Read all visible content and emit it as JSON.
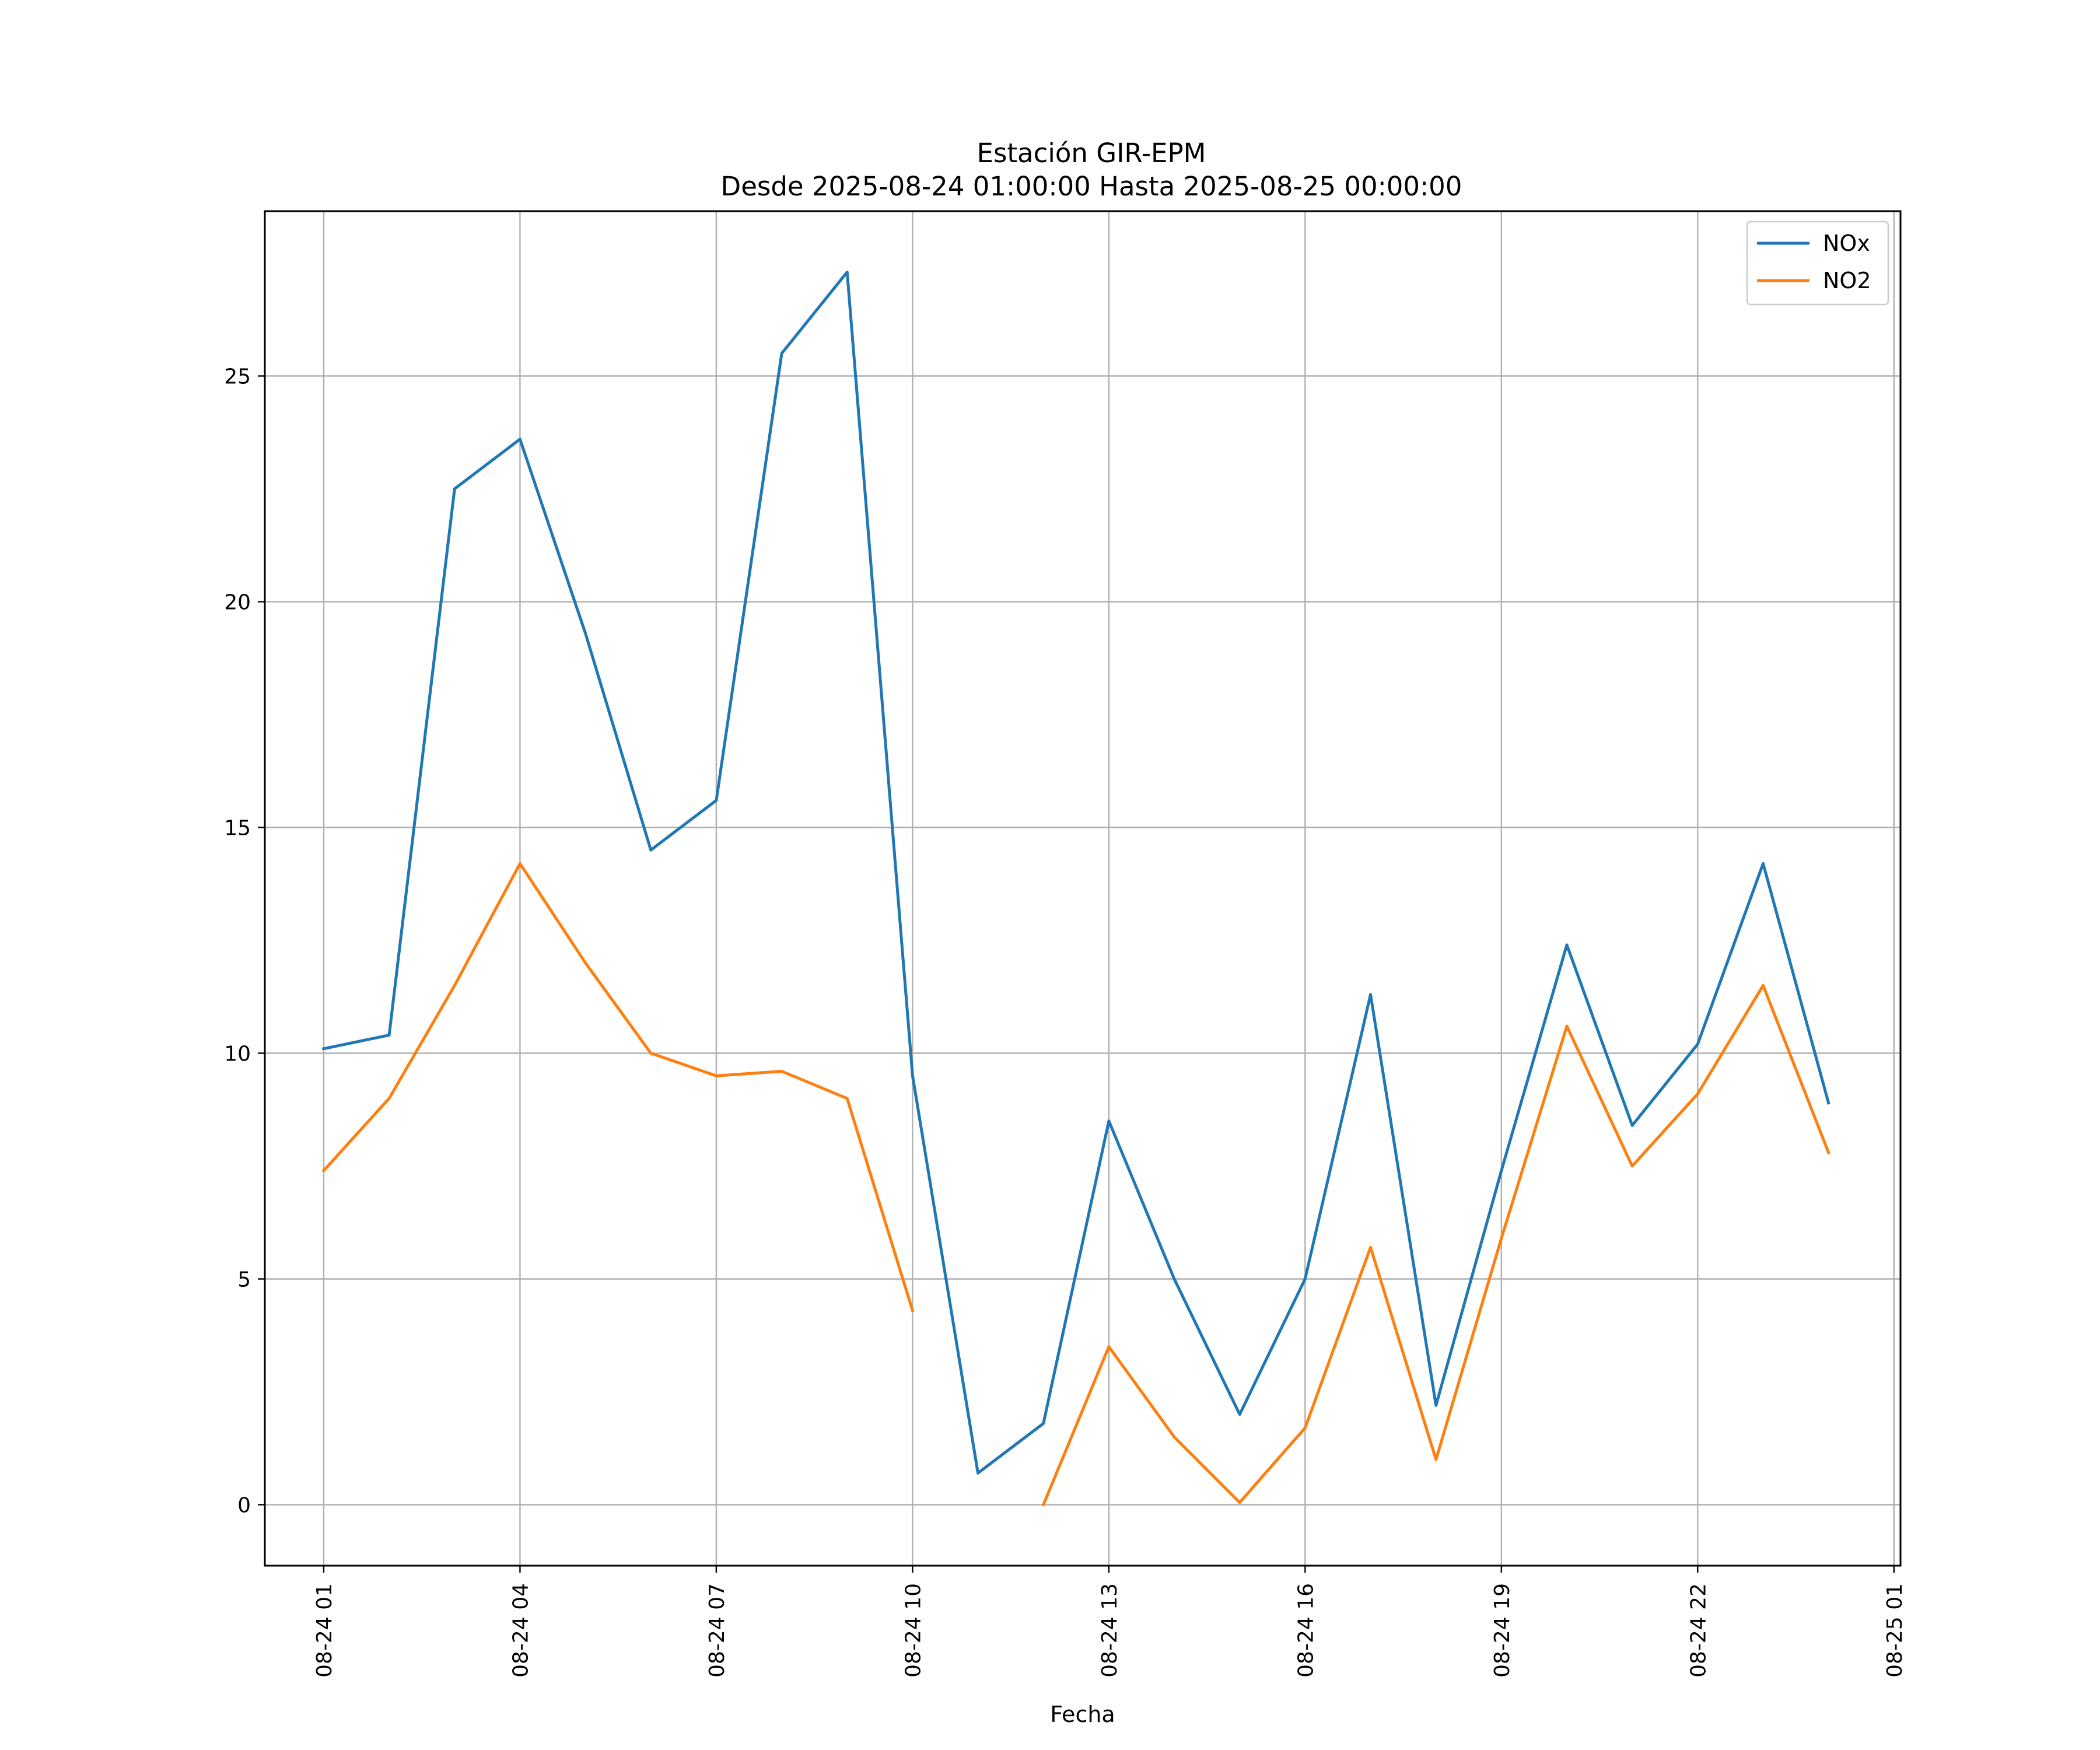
{
  "chart_data": {
    "type": "line",
    "title": "Estación GIR-EPM",
    "subtitle": "Desde 2025-08-24 01:00:00 Hasta 2025-08-25 00:00:00",
    "xlabel": "Fecha",
    "ylabel": "",
    "x": [
      "08-24 01",
      "08-24 02",
      "08-24 03",
      "08-24 04",
      "08-24 05",
      "08-24 06",
      "08-24 07",
      "08-24 08",
      "08-24 09",
      "08-24 10",
      "08-24 11",
      "08-24 12",
      "08-24 13",
      "08-24 14",
      "08-24 15",
      "08-24 16",
      "08-24 17",
      "08-24 18",
      "08-24 19",
      "08-24 20",
      "08-24 21",
      "08-24 22",
      "08-24 23",
      "08-25 00"
    ],
    "xticks": [
      "08-24 01",
      "08-24 04",
      "08-24 07",
      "08-24 10",
      "08-24 13",
      "08-24 16",
      "08-24 19",
      "08-24 22",
      "08-25 01"
    ],
    "yticks": [
      0,
      5,
      10,
      15,
      20,
      25
    ],
    "xlim_hours": [
      -0.9,
      24.1
    ],
    "ylim": [
      -1.35,
      28.65
    ],
    "grid": true,
    "legend_position": "top-right",
    "series": [
      {
        "name": "NOx",
        "color": "#1f77b4",
        "values": [
          10.1,
          10.4,
          22.5,
          23.6,
          19.3,
          14.5,
          15.6,
          25.5,
          27.3,
          9.5,
          0.7,
          1.8,
          8.5,
          5.0,
          2.0,
          5.0,
          11.3,
          2.2,
          7.4,
          12.4,
          8.4,
          10.2,
          14.2,
          8.9
        ]
      },
      {
        "name": "NO2",
        "color": "#ff7f0e",
        "values": [
          7.4,
          9.0,
          11.5,
          14.2,
          12.0,
          10.0,
          9.5,
          9.6,
          9.0,
          4.3,
          null,
          0.0,
          3.5,
          1.5,
          0.05,
          1.7,
          5.7,
          1.0,
          5.9,
          10.6,
          7.5,
          9.1,
          11.5,
          7.8
        ]
      }
    ]
  }
}
